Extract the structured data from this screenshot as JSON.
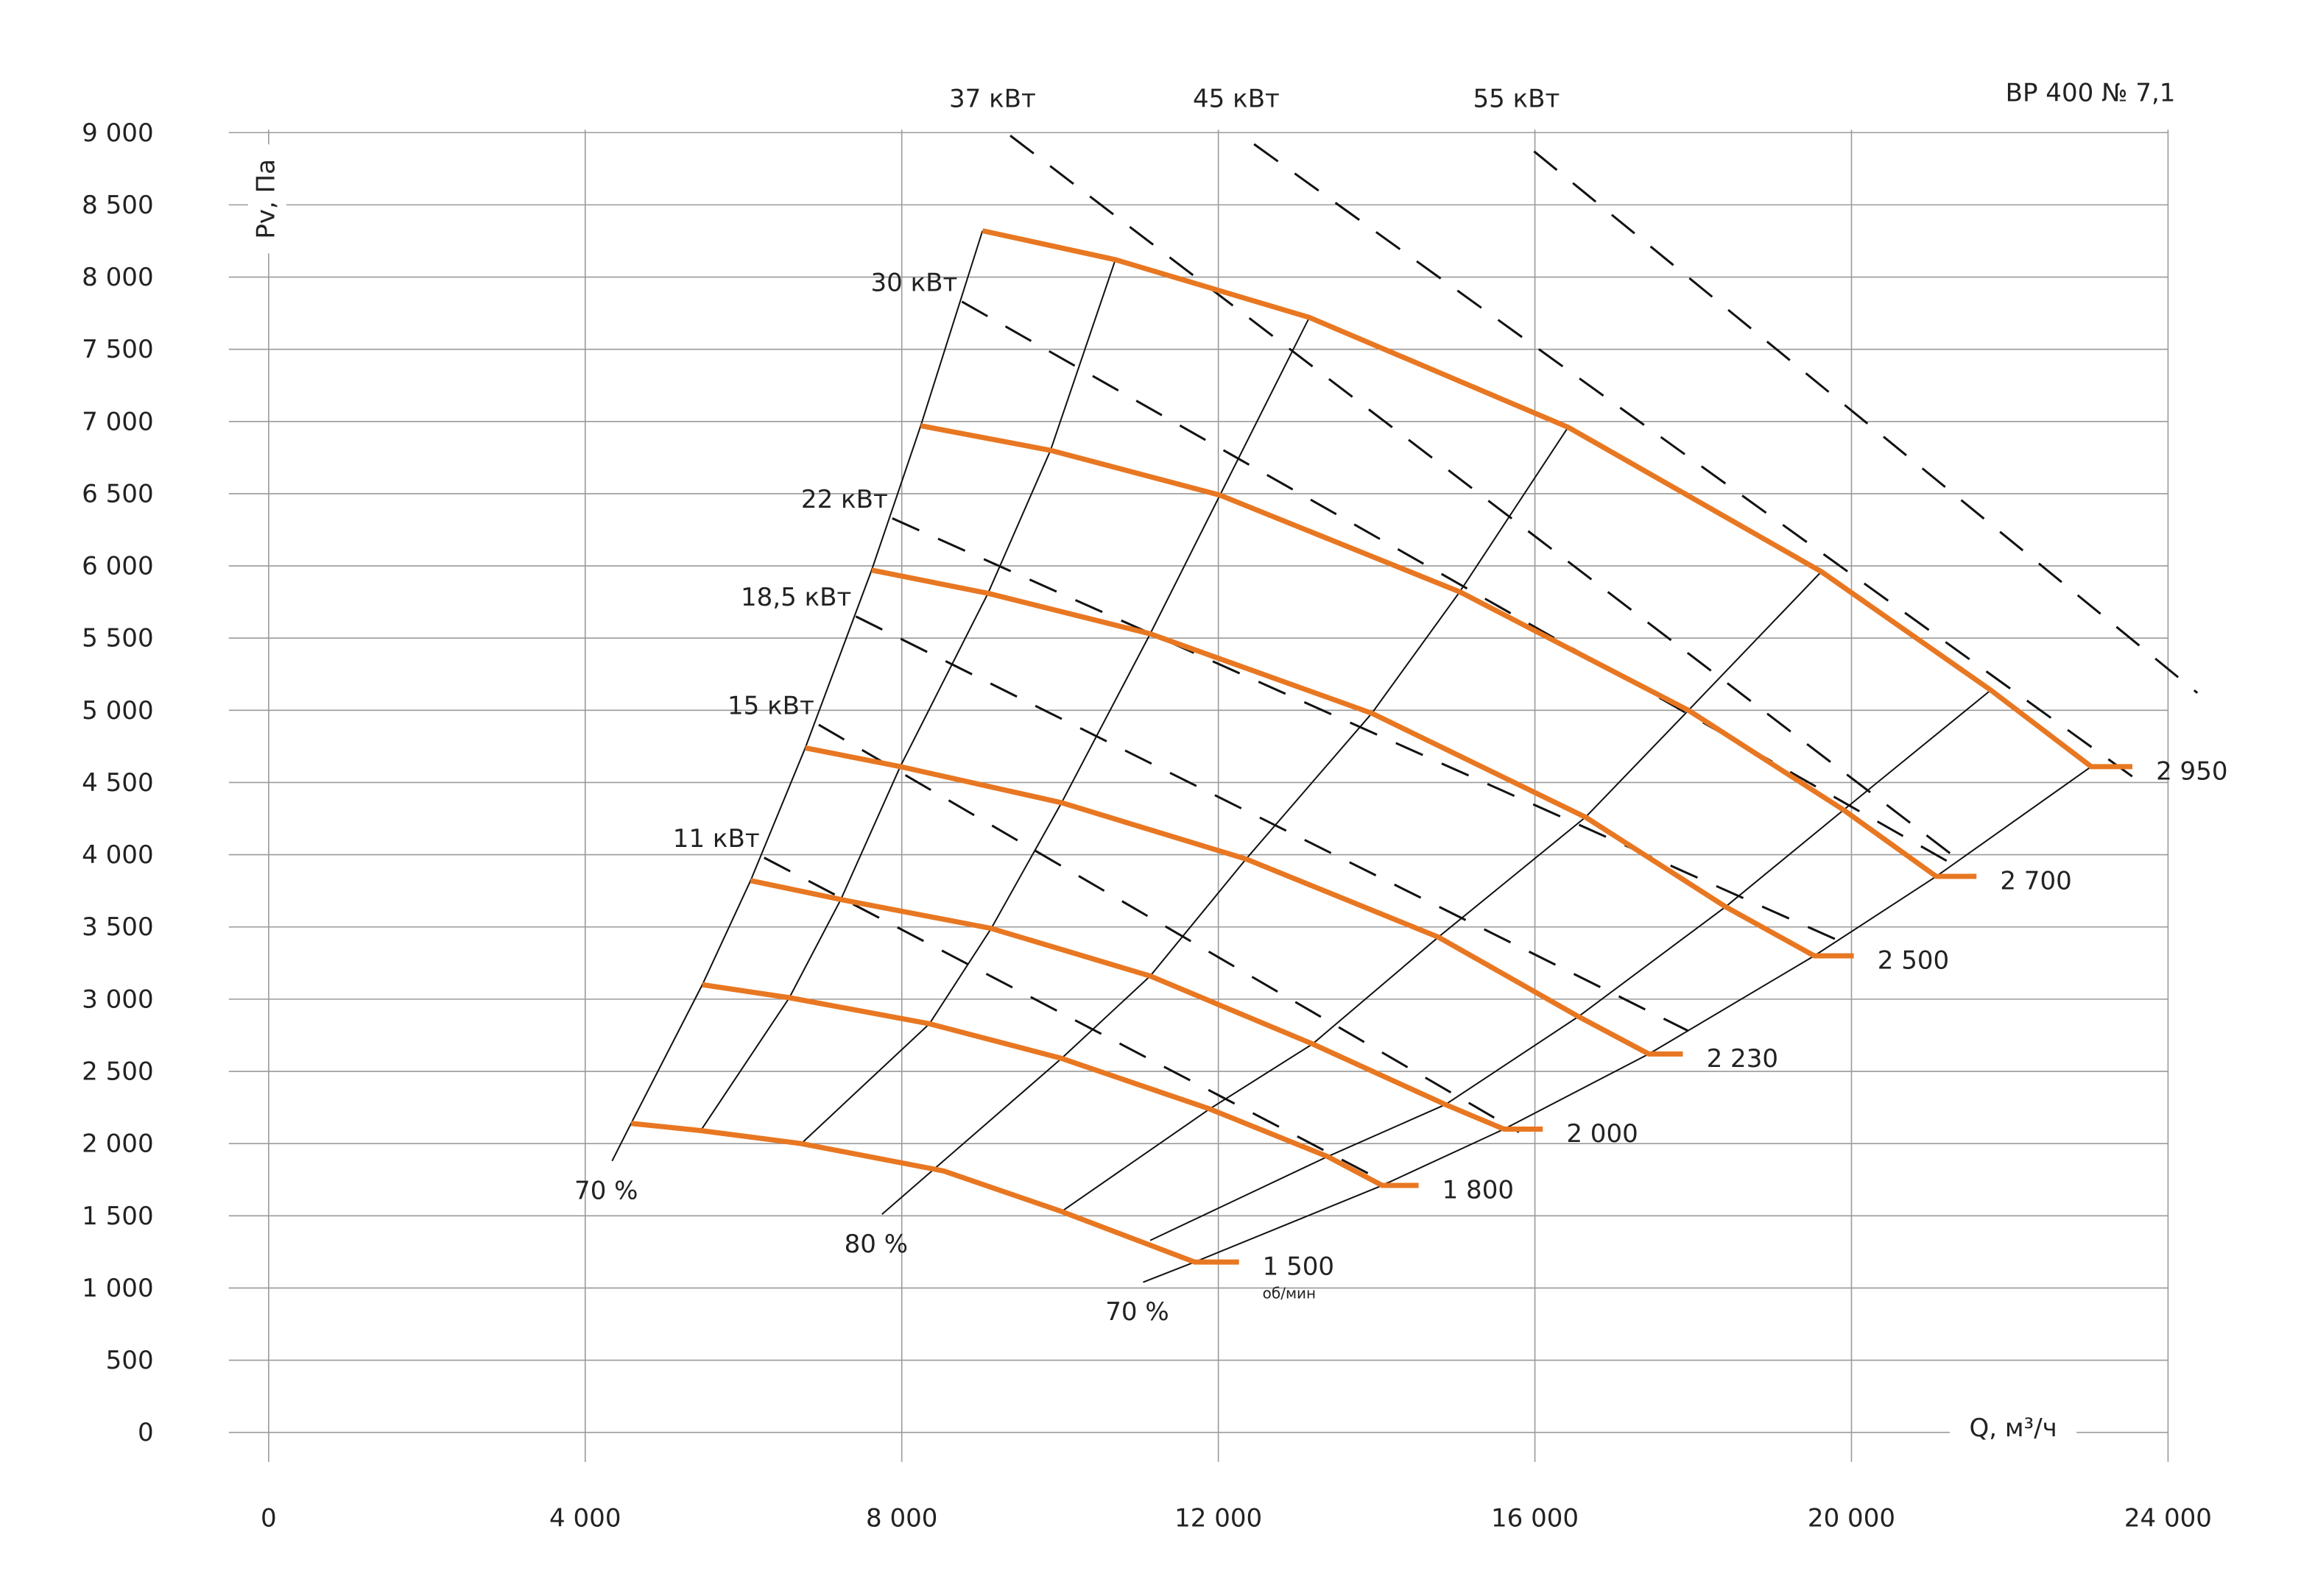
{
  "chart_data": {
    "type": "line",
    "title": "ВР 400 № 7,1",
    "x_label": "Q, м³/ч",
    "y_label": "Pv, Па",
    "speed_unit": "об/мин",
    "xlim": [
      0,
      24000
    ],
    "ylim": [
      0,
      9000
    ],
    "grid": true,
    "color": "#e87722",
    "xticks": [
      0,
      {
        "value": 4000,
        "label": "4 000"
      },
      {
        "value": 8000,
        "label": "8 000"
      },
      {
        "value": 12000,
        "label": "12 000"
      },
      {
        "value": 16000,
        "label": "16 000"
      },
      {
        "value": 20000,
        "label": "20 000"
      },
      {
        "value": 24000,
        "label": "24 000"
      }
    ],
    "yticks": [
      0,
      500,
      {
        "value": 1000,
        "label": "1 000"
      },
      {
        "value": 1500,
        "label": "1 500"
      },
      {
        "value": 2000,
        "label": "2 000"
      },
      {
        "value": 2500,
        "label": "2 500"
      },
      {
        "value": 3000,
        "label": "3 000"
      },
      {
        "value": 3500,
        "label": "3 500"
      },
      {
        "value": 4000,
        "label": "4 000"
      },
      {
        "value": 4500,
        "label": "4 500"
      },
      {
        "value": 5000,
        "label": "5 000"
      },
      {
        "value": 5500,
        "label": "5 500"
      },
      {
        "value": 6000,
        "label": "6 000"
      },
      {
        "value": 6500,
        "label": "6 500"
      },
      {
        "value": 7000,
        "label": "7 000"
      },
      {
        "value": 7500,
        "label": "7 500"
      },
      {
        "value": 8000,
        "label": "8 000"
      },
      {
        "value": 8500,
        "label": "8 500"
      },
      {
        "value": 9000,
        "label": "9 000"
      }
    ],
    "series": [
      {
        "name": "1 500",
        "x": [
          4580,
          5460,
          6730,
          8530,
          10020,
          11700,
          12260
        ],
        "values": [
          2140,
          2090,
          2000,
          1810,
          1530,
          1180,
          1180
        ]
      },
      {
        "name": "1 800",
        "x": [
          5480,
          6580,
          8350,
          10020,
          11890,
          13380,
          14070,
          14530
        ],
        "values": [
          3100,
          3010,
          2830,
          2590,
          2240,
          1910,
          1710,
          1710
        ]
      },
      {
        "name": "2 000",
        "x": [
          6090,
          7230,
          9130,
          11140,
          13190,
          14870,
          15610,
          16100
        ],
        "values": [
          3820,
          3690,
          3490,
          3160,
          2690,
          2270,
          2100,
          2100
        ]
      },
      {
        "name": "2 230",
        "x": [
          6780,
          7980,
          10020,
          12350,
          14780,
          16550,
          17440,
          17870
        ],
        "values": [
          4740,
          4610,
          4360,
          3970,
          3430,
          2880,
          2620,
          2620
        ]
      },
      {
        "name": "2 500",
        "x": [
          7620,
          9090,
          11140,
          13940,
          16640,
          18410,
          19530,
          20030
        ],
        "values": [
          5970,
          5810,
          5530,
          4980,
          4260,
          3640,
          3300,
          3300
        ]
      },
      {
        "name": "2 700",
        "x": [
          8240,
          9880,
          12020,
          15050,
          17940,
          19900,
          21070,
          21580
        ],
        "values": [
          6970,
          6800,
          6490,
          5820,
          5000,
          4310,
          3850,
          3850
        ]
      },
      {
        "name": "2 950",
        "x": [
          9020,
          10700,
          13150,
          16420,
          19620,
          21760,
          23030,
          23550
        ],
        "values": [
          8320,
          8120,
          7720,
          6960,
          5960,
          5140,
          4610,
          4610
        ]
      }
    ],
    "efficiency_lines": [
      {
        "name": "70 %",
        "x": [
          4340,
          4580,
          5480,
          6090,
          6780,
          7620,
          8240,
          9020
        ],
        "values": [
          1880,
          2140,
          3100,
          3820,
          4740,
          5970,
          6970,
          8320
        ]
      },
      {
        "x": [
          5460,
          6580,
          7230,
          7980,
          9090,
          9880,
          10700
        ],
        "values": [
          2090,
          3010,
          3690,
          4610,
          5810,
          6800,
          8120
        ]
      },
      {
        "x": [
          6730,
          8350,
          9130,
          10020,
          11140,
          12020,
          13150
        ],
        "values": [
          2000,
          2830,
          3490,
          4360,
          5530,
          6490,
          7720
        ]
      },
      {
        "name": "80 %",
        "x": [
          7750,
          10020,
          11140,
          12350,
          13940,
          15050,
          16420
        ],
        "values": [
          1510,
          2590,
          3160,
          3970,
          4980,
          5820,
          6960
        ]
      },
      {
        "x": [
          10020,
          11890,
          13190,
          14780,
          16640,
          17940,
          19620
        ],
        "values": [
          1530,
          2240,
          2690,
          3430,
          4260,
          5000,
          5960
        ]
      },
      {
        "x": [
          11140,
          13380,
          14870,
          16550,
          18410,
          19900,
          21760
        ],
        "values": [
          1330,
          1910,
          2270,
          2880,
          3640,
          4310,
          5140
        ]
      },
      {
        "name": "70 %",
        "x": [
          11050,
          11700,
          14070,
          15610,
          17440,
          19530,
          21070,
          23030
        ],
        "values": [
          1040,
          1180,
          1710,
          2100,
          2620,
          3300,
          3850,
          4610
        ]
      }
    ],
    "power_lines": [
      {
        "name": "11 кВт",
        "x": [
          6260,
          14220
        ],
        "values": [
          3980,
          1700
        ]
      },
      {
        "name": "15 кВт",
        "x": [
          6950,
          15800
        ],
        "values": [
          4900,
          2080
        ]
      },
      {
        "name": "18,5 кВт",
        "x": [
          7420,
          17940
        ],
        "values": [
          5650,
          2780
        ]
      },
      {
        "name": "22 кВт",
        "x": [
          7880,
          19900
        ],
        "values": [
          6330,
          3390
        ]
      },
      {
        "name": "30 кВт",
        "x": [
          8760,
          21390
        ],
        "values": [
          7830,
          3900
        ]
      },
      {
        "name": "37 кВт",
        "x": [
          9370,
          21390
        ],
        "values": [
          8980,
          3950
        ]
      },
      {
        "name": "45 кВт",
        "x": [
          12450,
          23630
        ],
        "values": [
          8920,
          4510
        ]
      },
      {
        "name": "55 кВт",
        "x": [
          15990,
          24370
        ],
        "values": [
          8870,
          5120
        ]
      }
    ]
  }
}
